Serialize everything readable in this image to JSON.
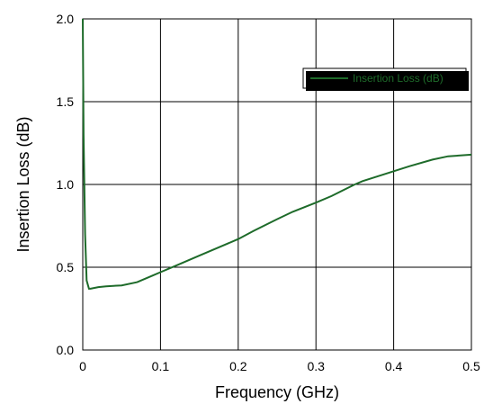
{
  "chart_data": {
    "type": "line",
    "title": "",
    "xlabel": "Frequency (GHz)",
    "ylabel": "Insertion Loss (dB)",
    "xlim": [
      0,
      0.5
    ],
    "ylim": [
      0,
      2.0
    ],
    "x_ticks": [
      "0",
      "0.1",
      "0.2",
      "0.3",
      "0.4",
      "0.5"
    ],
    "y_ticks": [
      "0.0",
      "0.5",
      "1.0",
      "1.5",
      "2.0"
    ],
    "grid": true,
    "legend_position": "top-right",
    "colors": {
      "series": "#1e6b2a",
      "grid": "#000000"
    },
    "series": [
      {
        "name": "Insertion Loss (dB)",
        "x": [
          0,
          0.001,
          0.003,
          0.005,
          0.008,
          0.01,
          0.02,
          0.03,
          0.05,
          0.07,
          0.09,
          0.1,
          0.12,
          0.15,
          0.18,
          0.2,
          0.22,
          0.25,
          0.27,
          0.3,
          0.32,
          0.35,
          0.36,
          0.38,
          0.4,
          0.42,
          0.45,
          0.47,
          0.5
        ],
        "y": [
          2.0,
          1.3,
          0.7,
          0.42,
          0.37,
          0.37,
          0.38,
          0.385,
          0.39,
          0.41,
          0.45,
          0.47,
          0.51,
          0.57,
          0.63,
          0.67,
          0.72,
          0.79,
          0.835,
          0.89,
          0.93,
          1.0,
          1.02,
          1.05,
          1.08,
          1.11,
          1.15,
          1.17,
          1.18
        ]
      }
    ]
  }
}
